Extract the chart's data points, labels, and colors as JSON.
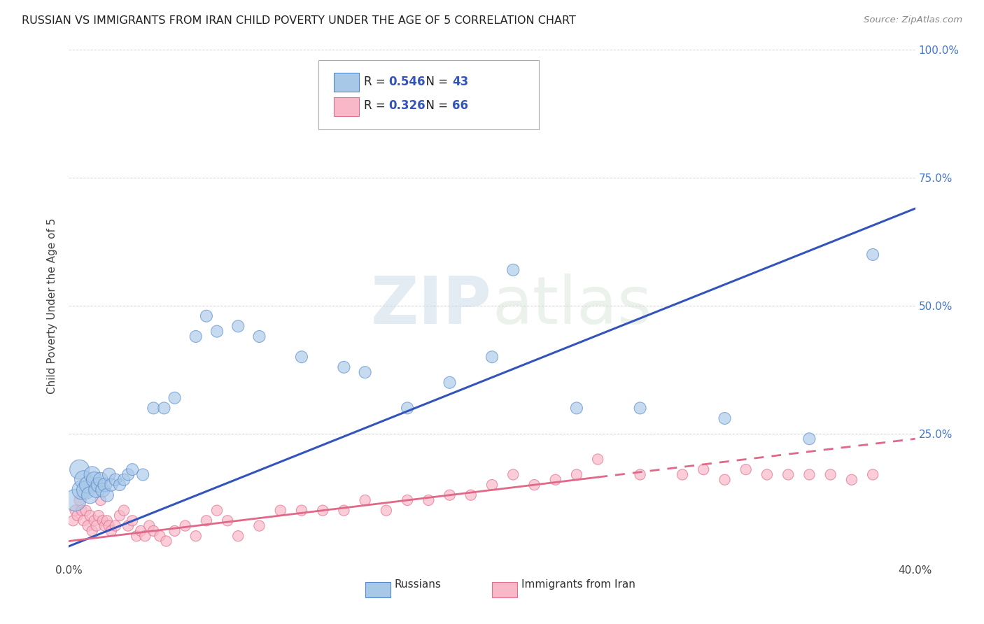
{
  "title": "RUSSIAN VS IMMIGRANTS FROM IRAN CHILD POVERTY UNDER THE AGE OF 5 CORRELATION CHART",
  "source": "Source: ZipAtlas.com",
  "ylabel": "Child Poverty Under the Age of 5",
  "xlim": [
    0,
    0.4
  ],
  "ylim": [
    0,
    1.0
  ],
  "blue_color": "#a8c8e8",
  "blue_edge_color": "#5588cc",
  "pink_color": "#f8b8c8",
  "pink_edge_color": "#e07090",
  "blue_line_color": "#3355bb",
  "pink_line_color": "#e06888",
  "watermark_color": "#ccd8e8",
  "russians_x": [
    0.003,
    0.005,
    0.006,
    0.007,
    0.008,
    0.009,
    0.01,
    0.011,
    0.012,
    0.013,
    0.014,
    0.015,
    0.016,
    0.017,
    0.018,
    0.019,
    0.02,
    0.022,
    0.024,
    0.026,
    0.028,
    0.03,
    0.035,
    0.04,
    0.045,
    0.05,
    0.06,
    0.065,
    0.07,
    0.08,
    0.09,
    0.11,
    0.13,
    0.14,
    0.16,
    0.18,
    0.2,
    0.21,
    0.24,
    0.27,
    0.31,
    0.35,
    0.38
  ],
  "russians_y": [
    0.12,
    0.18,
    0.14,
    0.16,
    0.14,
    0.15,
    0.13,
    0.17,
    0.16,
    0.14,
    0.15,
    0.16,
    0.14,
    0.15,
    0.13,
    0.17,
    0.15,
    0.16,
    0.15,
    0.16,
    0.17,
    0.18,
    0.17,
    0.3,
    0.3,
    0.32,
    0.44,
    0.48,
    0.45,
    0.46,
    0.44,
    0.4,
    0.38,
    0.37,
    0.3,
    0.35,
    0.4,
    0.57,
    0.3,
    0.3,
    0.28,
    0.24,
    0.6
  ],
  "russians_sizes": [
    500,
    400,
    380,
    350,
    350,
    300,
    300,
    280,
    260,
    250,
    230,
    220,
    210,
    200,
    190,
    180,
    170,
    160,
    150,
    150,
    150,
    150,
    150,
    150,
    150,
    150,
    150,
    150,
    150,
    150,
    150,
    150,
    150,
    150,
    150,
    150,
    150,
    150,
    150,
    150,
    150,
    150,
    150
  ],
  "iran_x": [
    0.002,
    0.003,
    0.004,
    0.005,
    0.006,
    0.007,
    0.008,
    0.009,
    0.01,
    0.011,
    0.012,
    0.013,
    0.014,
    0.015,
    0.016,
    0.017,
    0.018,
    0.019,
    0.02,
    0.022,
    0.024,
    0.026,
    0.028,
    0.03,
    0.032,
    0.034,
    0.036,
    0.038,
    0.04,
    0.043,
    0.046,
    0.05,
    0.055,
    0.06,
    0.065,
    0.07,
    0.075,
    0.08,
    0.09,
    0.1,
    0.11,
    0.12,
    0.13,
    0.14,
    0.15,
    0.16,
    0.17,
    0.18,
    0.19,
    0.2,
    0.21,
    0.22,
    0.23,
    0.24,
    0.25,
    0.27,
    0.29,
    0.3,
    0.31,
    0.32,
    0.33,
    0.34,
    0.35,
    0.36,
    0.37,
    0.38
  ],
  "iran_y": [
    0.08,
    0.1,
    0.09,
    0.12,
    0.1,
    0.08,
    0.1,
    0.07,
    0.09,
    0.06,
    0.08,
    0.07,
    0.09,
    0.12,
    0.08,
    0.07,
    0.08,
    0.07,
    0.06,
    0.07,
    0.09,
    0.1,
    0.07,
    0.08,
    0.05,
    0.06,
    0.05,
    0.07,
    0.06,
    0.05,
    0.04,
    0.06,
    0.07,
    0.05,
    0.08,
    0.1,
    0.08,
    0.05,
    0.07,
    0.1,
    0.1,
    0.1,
    0.1,
    0.12,
    0.1,
    0.12,
    0.12,
    0.13,
    0.13,
    0.15,
    0.17,
    0.15,
    0.16,
    0.17,
    0.2,
    0.17,
    0.17,
    0.18,
    0.16,
    0.18,
    0.17,
    0.17,
    0.17,
    0.17,
    0.16,
    0.17
  ],
  "iran_sizes": [
    120,
    120,
    120,
    120,
    120,
    120,
    120,
    120,
    120,
    120,
    120,
    120,
    120,
    120,
    120,
    120,
    120,
    120,
    120,
    120,
    120,
    120,
    120,
    120,
    120,
    120,
    120,
    120,
    120,
    120,
    120,
    120,
    120,
    120,
    120,
    120,
    120,
    120,
    120,
    120,
    120,
    120,
    120,
    120,
    120,
    120,
    120,
    120,
    120,
    120,
    120,
    120,
    120,
    120,
    120,
    120,
    120,
    120,
    120,
    120,
    120,
    120,
    120,
    120,
    120,
    120
  ],
  "blue_R": "0.546",
  "blue_N": "43",
  "pink_R": "0.326",
  "pink_N": "66",
  "legend_label_blue": "Russians",
  "legend_label_pink": "Immigrants from Iran"
}
